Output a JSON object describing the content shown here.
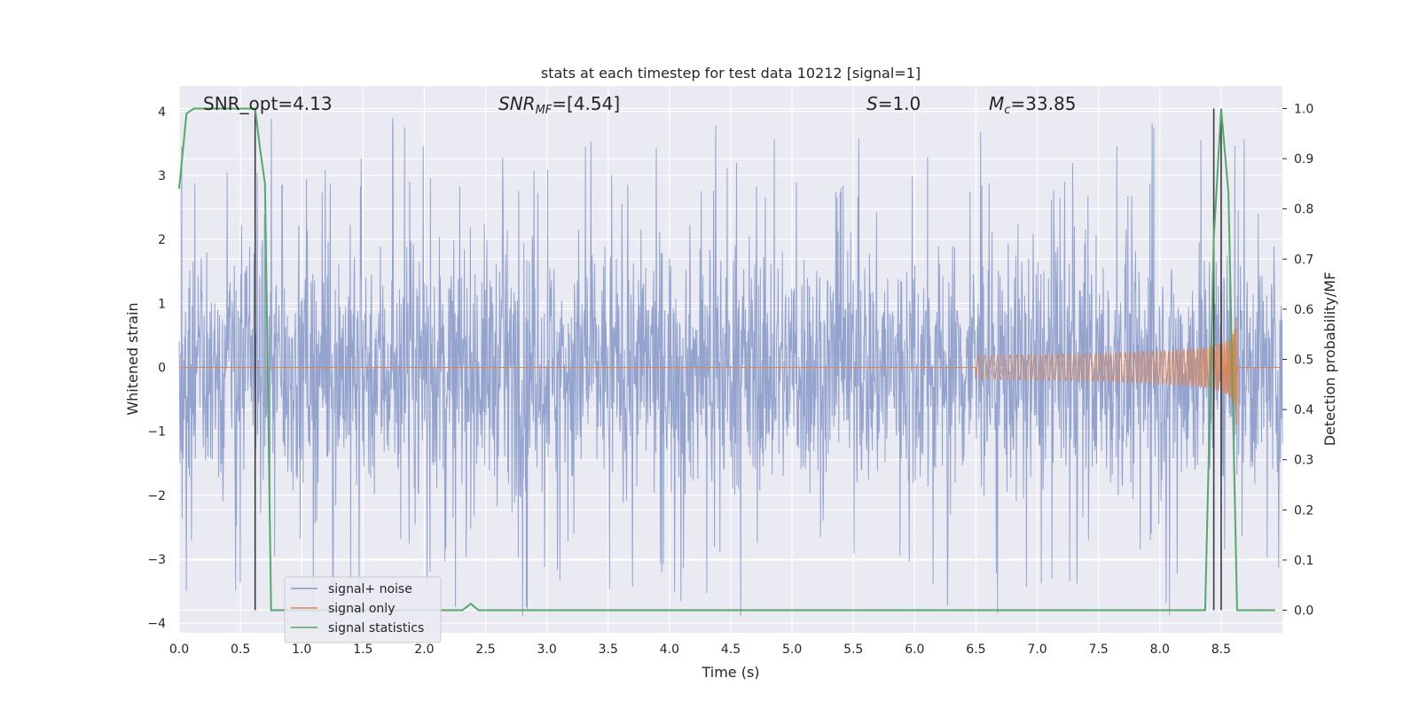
{
  "chart_data": {
    "type": "line",
    "title": "stats at each timestep for test data 10212 [signal=1]",
    "xlabel": "Time (s)",
    "ylabel": "Whitened strain",
    "y2label": "Detection probability/MF",
    "xlim": [
      0,
      9
    ],
    "ylim": [
      -4.15,
      4.4
    ],
    "y2lim": [
      -0.045,
      1.045
    ],
    "x_ticks": [
      "0.0",
      "0.5",
      "1.0",
      "1.5",
      "2.0",
      "2.5",
      "3.0",
      "3.5",
      "4.0",
      "4.5",
      "5.0",
      "5.5",
      "6.0",
      "6.5",
      "7.0",
      "7.5",
      "8.0",
      "8.5"
    ],
    "y_ticks": [
      "4",
      "3",
      "2",
      "1",
      "0",
      "−1",
      "−2",
      "−3",
      "−4"
    ],
    "y2_ticks": [
      "1.0",
      "0.9",
      "0.8",
      "0.7",
      "0.6",
      "0.5",
      "0.4",
      "0.3",
      "0.2",
      "0.1",
      "0.0"
    ],
    "grid": true,
    "annotations": {
      "snr_opt": "SNR_opt=4.13",
      "snr_mf_main": "SNR",
      "snr_mf_sub": "MF",
      "snr_mf_tail": "=[4.54]",
      "s_main": "S",
      "s_tail": "=1.0",
      "mc_main": "M",
      "mc_sub": "c",
      "mc_tail": "=33.85"
    },
    "legend": {
      "placement": "lower-left",
      "entries": [
        "signal+ noise",
        "signal only",
        "signal statistics"
      ]
    },
    "vertical_lines_x": [
      0.62,
      8.44,
      8.5
    ],
    "series": [
      {
        "name": "signal+ noise",
        "axis": "left",
        "color": "#8497c8",
        "description_kind": "noise",
        "amplitude_typical": 1.6,
        "amplitude_max": 3.9
      },
      {
        "name": "signal only",
        "axis": "left",
        "color": "#dd8452",
        "kind": "chirp",
        "start_x": 6.5,
        "peak_x": 8.63,
        "peak_amplitude": 1.0
      },
      {
        "name": "signal statistics",
        "axis": "right",
        "color": "#55a868",
        "x": [
          0.0,
          0.06,
          0.12,
          0.56,
          0.62,
          0.66,
          0.7,
          0.75,
          1.0,
          2.25,
          2.31,
          2.38,
          2.44,
          2.5,
          8.37,
          8.44,
          8.5,
          8.56,
          8.63,
          8.69,
          8.94
        ],
        "y": [
          0.84,
          0.99,
          1.0,
          1.0,
          1.0,
          0.92,
          0.85,
          0.0,
          0.0,
          0.0,
          0.0,
          0.013,
          0.0,
          0.0,
          0.0,
          0.74,
          1.0,
          0.83,
          0.0,
          0.0,
          0.0
        ]
      }
    ]
  }
}
